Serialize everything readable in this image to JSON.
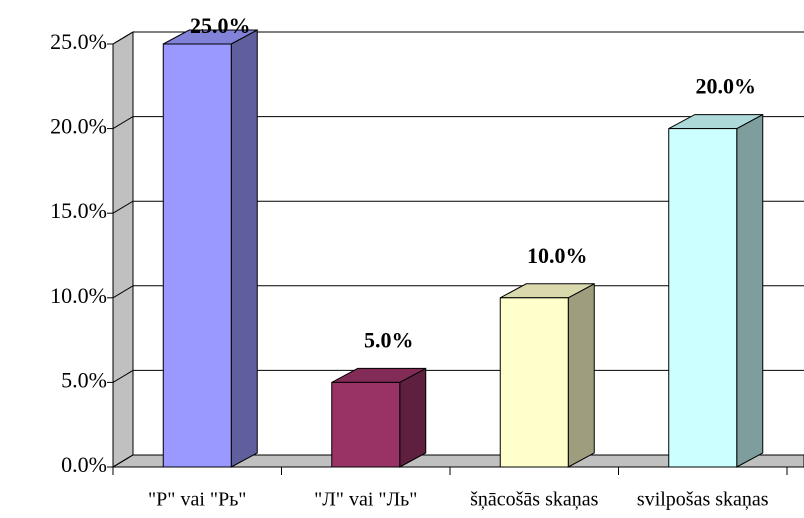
{
  "chart_data": {
    "type": "bar3d",
    "categories": [
      "\"Р\" vai \"Рь\"",
      "\"Л\" vai \"Ль\"",
      "šņācošās skaņas",
      "svilpošas skaņas"
    ],
    "values": [
      25,
      5,
      10,
      20
    ],
    "value_labels": [
      "25.0%",
      "5.0%",
      "10.0%",
      "20.0%"
    ],
    "colors": [
      "#9999ff",
      "#993366",
      "#ffffcc",
      "#ccffff"
    ],
    "ylim": [
      0,
      25
    ],
    "yticks": [
      {
        "value": 0,
        "label": "0.0%"
      },
      {
        "value": 5,
        "label": "5.0%"
      },
      {
        "value": 10,
        "label": "10.0%"
      },
      {
        "value": 15,
        "label": "15.0%"
      },
      {
        "value": 20,
        "label": "20.0%"
      },
      {
        "value": 25,
        "label": "25.0%"
      }
    ],
    "grid": true
  }
}
